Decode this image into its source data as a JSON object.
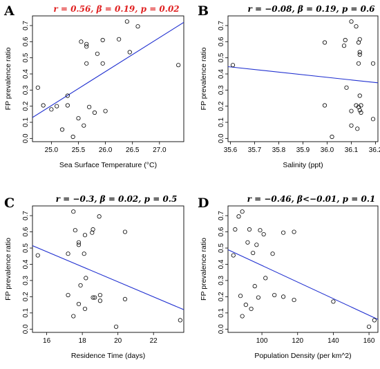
{
  "colors": {
    "fit_line": "#1f2fd0",
    "highlight_stat": "#e02020",
    "normal_stat": "#000000",
    "point_stroke": "#000000"
  },
  "chart_data": [
    {
      "type": "scatter",
      "panel": "A",
      "stat_text": "r = 0.56, β = 0.19, p = 0.02",
      "stat_highlight": true,
      "xlabel": "Sea Surface Temperature (°C)",
      "ylabel": "FP prevalence ratio",
      "xlim": [
        24.65,
        27.45
      ],
      "ylim": [
        -0.02,
        0.76
      ],
      "xticks": [
        "25.0",
        "25.5",
        "26.0",
        "26.5",
        "27.0"
      ],
      "xtick_values": [
        25.0,
        25.5,
        26.0,
        26.5,
        27.0
      ],
      "yticks": [
        "0.0",
        "0.1",
        "0.2",
        "0.3",
        "0.4",
        "0.5",
        "0.6",
        "0.7"
      ],
      "ytick_values": [
        0.0,
        0.1,
        0.2,
        0.3,
        0.4,
        0.5,
        0.6,
        0.7
      ],
      "fit_line": {
        "x": [
          24.65,
          27.45
        ],
        "y": [
          0.13,
          0.72
        ]
      },
      "points": [
        [
          24.75,
          0.315
        ],
        [
          24.85,
          0.205
        ],
        [
          25.0,
          0.18
        ],
        [
          25.1,
          0.2
        ],
        [
          25.2,
          0.055
        ],
        [
          25.3,
          0.205
        ],
        [
          25.3,
          0.265
        ],
        [
          25.4,
          0.01
        ],
        [
          25.5,
          0.125
        ],
        [
          25.55,
          0.6
        ],
        [
          25.6,
          0.08
        ],
        [
          25.65,
          0.57
        ],
        [
          25.65,
          0.585
        ],
        [
          25.65,
          0.465
        ],
        [
          25.7,
          0.195
        ],
        [
          25.8,
          0.16
        ],
        [
          25.85,
          0.525
        ],
        [
          25.95,
          0.61
        ],
        [
          25.95,
          0.465
        ],
        [
          26.0,
          0.17
        ],
        [
          26.25,
          0.615
        ],
        [
          26.4,
          0.725
        ],
        [
          26.45,
          0.535
        ],
        [
          26.6,
          0.695
        ],
        [
          27.35,
          0.455
        ]
      ]
    },
    {
      "type": "scatter",
      "panel": "B",
      "stat_text": "r = −0.08, β = 0.19, p = 0.6",
      "stat_highlight": false,
      "xlabel": "Salinity (ppt)",
      "ylabel": "FP prevalence ratio",
      "xlim": [
        35.59,
        36.21
      ],
      "ylim": [
        -0.02,
        0.76
      ],
      "xticks": [
        "35.6",
        "35.7",
        "35.8",
        "35.9",
        "36.0",
        "36.1",
        "36.2"
      ],
      "xtick_values": [
        35.6,
        35.7,
        35.8,
        35.9,
        36.0,
        36.1,
        36.2
      ],
      "yticks": [
        "0.0",
        "0.1",
        "0.2",
        "0.3",
        "0.4",
        "0.5",
        "0.6",
        "0.7"
      ],
      "ytick_values": [
        0.0,
        0.1,
        0.2,
        0.3,
        0.4,
        0.5,
        0.6,
        0.7
      ],
      "fit_line": {
        "x": [
          35.59,
          36.21
        ],
        "y": [
          0.445,
          0.345
        ]
      },
      "points": [
        [
          35.61,
          0.455
        ],
        [
          35.99,
          0.595
        ],
        [
          35.99,
          0.205
        ],
        [
          36.02,
          0.01
        ],
        [
          36.07,
          0.575
        ],
        [
          36.075,
          0.61
        ],
        [
          36.08,
          0.315
        ],
        [
          36.1,
          0.725
        ],
        [
          36.1,
          0.17
        ],
        [
          36.1,
          0.08
        ],
        [
          36.12,
          0.695
        ],
        [
          36.12,
          0.205
        ],
        [
          36.125,
          0.06
        ],
        [
          36.13,
          0.195
        ],
        [
          36.13,
          0.465
        ],
        [
          36.135,
          0.535
        ],
        [
          36.135,
          0.52
        ],
        [
          36.135,
          0.265
        ],
        [
          36.135,
          0.175
        ],
        [
          36.135,
          0.615
        ],
        [
          36.13,
          0.595
        ],
        [
          36.14,
          0.205
        ],
        [
          36.14,
          0.16
        ],
        [
          36.19,
          0.465
        ],
        [
          36.19,
          0.12
        ]
      ]
    },
    {
      "type": "scatter",
      "panel": "C",
      "stat_text": "r = −0.3, β = 0.02, p = 0.5",
      "stat_highlight": false,
      "xlabel": "Residence Time (days)",
      "ylabel": "FP prevalence ratio",
      "xlim": [
        15.2,
        23.7
      ],
      "ylim": [
        -0.02,
        0.76
      ],
      "xticks": [
        "16",
        "18",
        "20",
        "22"
      ],
      "xtick_values": [
        16,
        18,
        20,
        22
      ],
      "yticks": [
        "0.0",
        "0.1",
        "0.2",
        "0.3",
        "0.4",
        "0.5",
        "0.6",
        "0.7"
      ],
      "ytick_values": [
        0.0,
        0.1,
        0.2,
        0.3,
        0.4,
        0.5,
        0.6,
        0.7
      ],
      "fit_line": {
        "x": [
          15.2,
          23.7
        ],
        "y": [
          0.515,
          0.12
        ]
      },
      "points": [
        [
          15.5,
          0.455
        ],
        [
          17.2,
          0.465
        ],
        [
          17.2,
          0.21
        ],
        [
          17.5,
          0.725
        ],
        [
          17.5,
          0.08
        ],
        [
          17.6,
          0.61
        ],
        [
          17.8,
          0.535
        ],
        [
          17.8,
          0.52
        ],
        [
          17.8,
          0.155
        ],
        [
          17.9,
          0.27
        ],
        [
          18.1,
          0.465
        ],
        [
          18.15,
          0.58
        ],
        [
          18.15,
          0.125
        ],
        [
          18.2,
          0.315
        ],
        [
          18.55,
          0.595
        ],
        [
          18.6,
          0.615
        ],
        [
          18.6,
          0.195
        ],
        [
          18.7,
          0.195
        ],
        [
          18.95,
          0.695
        ],
        [
          19.0,
          0.21
        ],
        [
          19.0,
          0.175
        ],
        [
          19.9,
          0.015
        ],
        [
          20.4,
          0.6
        ],
        [
          20.4,
          0.185
        ],
        [
          23.5,
          0.055
        ]
      ]
    },
    {
      "type": "scatter",
      "panel": "D",
      "stat_text": "r = −0.46, β<−0.01, p = 0.1",
      "stat_highlight": false,
      "xlabel": "Population Density (per km^2)",
      "ylabel": "FP prevalence ratio",
      "xlim": [
        81,
        165
      ],
      "ylim": [
        -0.02,
        0.76
      ],
      "xticks": [
        "100",
        "120",
        "140",
        "160"
      ],
      "xtick_values": [
        100,
        120,
        140,
        160
      ],
      "yticks": [
        "0.0",
        "0.1",
        "0.2",
        "0.3",
        "0.4",
        "0.5",
        "0.6",
        "0.7"
      ],
      "ytick_values": [
        0.0,
        0.1,
        0.2,
        0.3,
        0.4,
        0.5,
        0.6,
        0.7
      ],
      "fit_line": {
        "x": [
          81,
          165
        ],
        "y": [
          0.49,
          0.06
        ]
      },
      "points": [
        [
          84,
          0.455
        ],
        [
          85,
          0.615
        ],
        [
          87,
          0.695
        ],
        [
          88,
          0.205
        ],
        [
          89,
          0.725
        ],
        [
          89,
          0.08
        ],
        [
          91,
          0.15
        ],
        [
          92,
          0.535
        ],
        [
          93,
          0.615
        ],
        [
          94,
          0.125
        ],
        [
          95,
          0.47
        ],
        [
          96,
          0.265
        ],
        [
          97,
          0.52
        ],
        [
          98,
          0.195
        ],
        [
          99,
          0.61
        ],
        [
          101,
          0.585
        ],
        [
          102,
          0.315
        ],
        [
          106,
          0.465
        ],
        [
          107,
          0.21
        ],
        [
          112,
          0.595
        ],
        [
          112,
          0.2
        ],
        [
          118,
          0.6
        ],
        [
          118,
          0.18
        ],
        [
          140,
          0.17
        ],
        [
          160,
          0.015
        ],
        [
          163,
          0.055
        ]
      ]
    }
  ]
}
